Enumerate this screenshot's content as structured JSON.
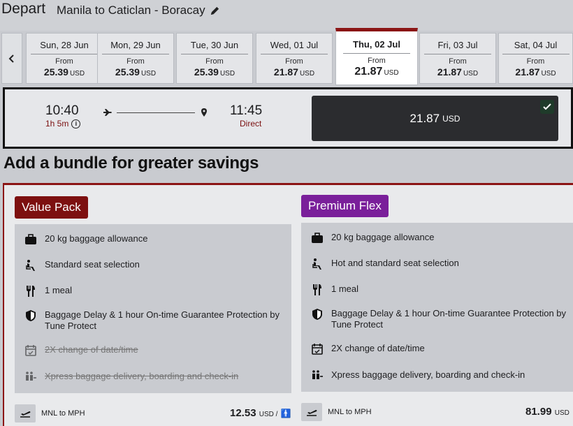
{
  "header": {
    "title": "Depart",
    "route": "Manila to Caticlan - Boracay"
  },
  "dates": [
    {
      "day": "Sun, 28 Jun",
      "from": "From",
      "price": "25.39",
      "currency": "USD"
    },
    {
      "day": "Mon, 29 Jun",
      "from": "From",
      "price": "25.39",
      "currency": "USD"
    },
    {
      "day": "Tue, 30 Jun",
      "from": "From",
      "price": "25.39",
      "currency": "USD"
    },
    {
      "day": "Wed, 01 Jul",
      "from": "From",
      "price": "21.87",
      "currency": "USD"
    },
    {
      "day": "Thu, 02 Jul",
      "from": "From",
      "price": "21.87",
      "currency": "USD"
    },
    {
      "day": "Fri, 03 Jul",
      "from": "From",
      "price": "21.87",
      "currency": "USD"
    },
    {
      "day": "Sat, 04 Jul",
      "from": "From",
      "price": "21.87",
      "currency": "USD"
    }
  ],
  "flight": {
    "depart_time": "10:40",
    "duration": "1h 5m",
    "arrive_time": "11:45",
    "stops": "Direct",
    "fare": "21.87",
    "currency": "USD"
  },
  "bundles": {
    "title": "Add a bundle for greater savings",
    "value_pack": {
      "name": "Value Pack",
      "features": [
        "20 kg baggage allowance",
        "Standard seat selection",
        "1 meal",
        "Baggage Delay & 1 hour On-time Guarantee Protection by Tune Protect",
        "2X change of date/time",
        "Xpress baggage delivery, boarding and check-in"
      ],
      "route": "MNL to MPH",
      "price": "12.53",
      "currency": "USD /"
    },
    "premium_flex": {
      "name": "Premium Flex",
      "features": [
        "20 kg baggage allowance",
        "Hot and standard seat selection",
        "1 meal",
        "Baggage Delay & 1 hour On-time Guarantee Protection by Tune Protect",
        "2X change of date/time",
        "Xpress baggage delivery, boarding and check-in"
      ],
      "route": "MNL to MPH",
      "price": "81.99",
      "currency": "USD"
    }
  },
  "colors": {
    "value_pack": "#7d1010",
    "premium_flex": "#7a1f9a",
    "accent": "#8b1414",
    "fare_button": "#2b2c2f"
  },
  "icons": [
    "edit-icon",
    "chevron-left-icon",
    "plane-icon",
    "pin-icon",
    "info-icon",
    "check-icon",
    "baggage-icon",
    "seat-icon",
    "meal-icon",
    "shield-icon",
    "calendar-icon",
    "xpress-icon",
    "plane-takeoff-icon",
    "person-icon"
  ]
}
